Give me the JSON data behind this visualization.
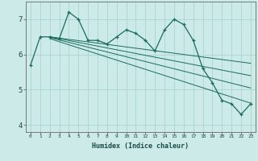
{
  "xlabel": "Humidex (Indice chaleur)",
  "bg_color": "#cceae8",
  "grid_color": "#aad4d0",
  "line_color": "#1a6b5e",
  "x_values": [
    0,
    1,
    2,
    3,
    4,
    5,
    6,
    7,
    8,
    9,
    10,
    11,
    12,
    13,
    14,
    15,
    16,
    17,
    18,
    19,
    20,
    21,
    22,
    23
  ],
  "y_main": [
    5.7,
    6.5,
    6.5,
    6.45,
    7.2,
    7.0,
    6.4,
    6.4,
    6.3,
    6.5,
    6.7,
    6.6,
    6.4,
    6.1,
    6.7,
    7.0,
    6.85,
    6.4,
    5.6,
    5.2,
    4.7,
    4.6,
    4.3,
    4.6
  ],
  "trend_lines": [
    {
      "x_start": 2,
      "y_start": 6.5,
      "x_end": 23,
      "y_end": 5.75
    },
    {
      "x_start": 2,
      "y_start": 6.5,
      "x_end": 23,
      "y_end": 5.4
    },
    {
      "x_start": 2,
      "y_start": 6.48,
      "x_end": 23,
      "y_end": 5.05
    },
    {
      "x_start": 2,
      "y_start": 6.45,
      "x_end": 23,
      "y_end": 4.62
    }
  ],
  "ylim": [
    3.8,
    7.5
  ],
  "yticks": [
    4,
    5,
    6,
    7
  ],
  "xlim": [
    -0.5,
    23.5
  ],
  "xlabel_fontsize": 6.0,
  "xtick_fontsize": 4.5,
  "ytick_fontsize": 6.5
}
